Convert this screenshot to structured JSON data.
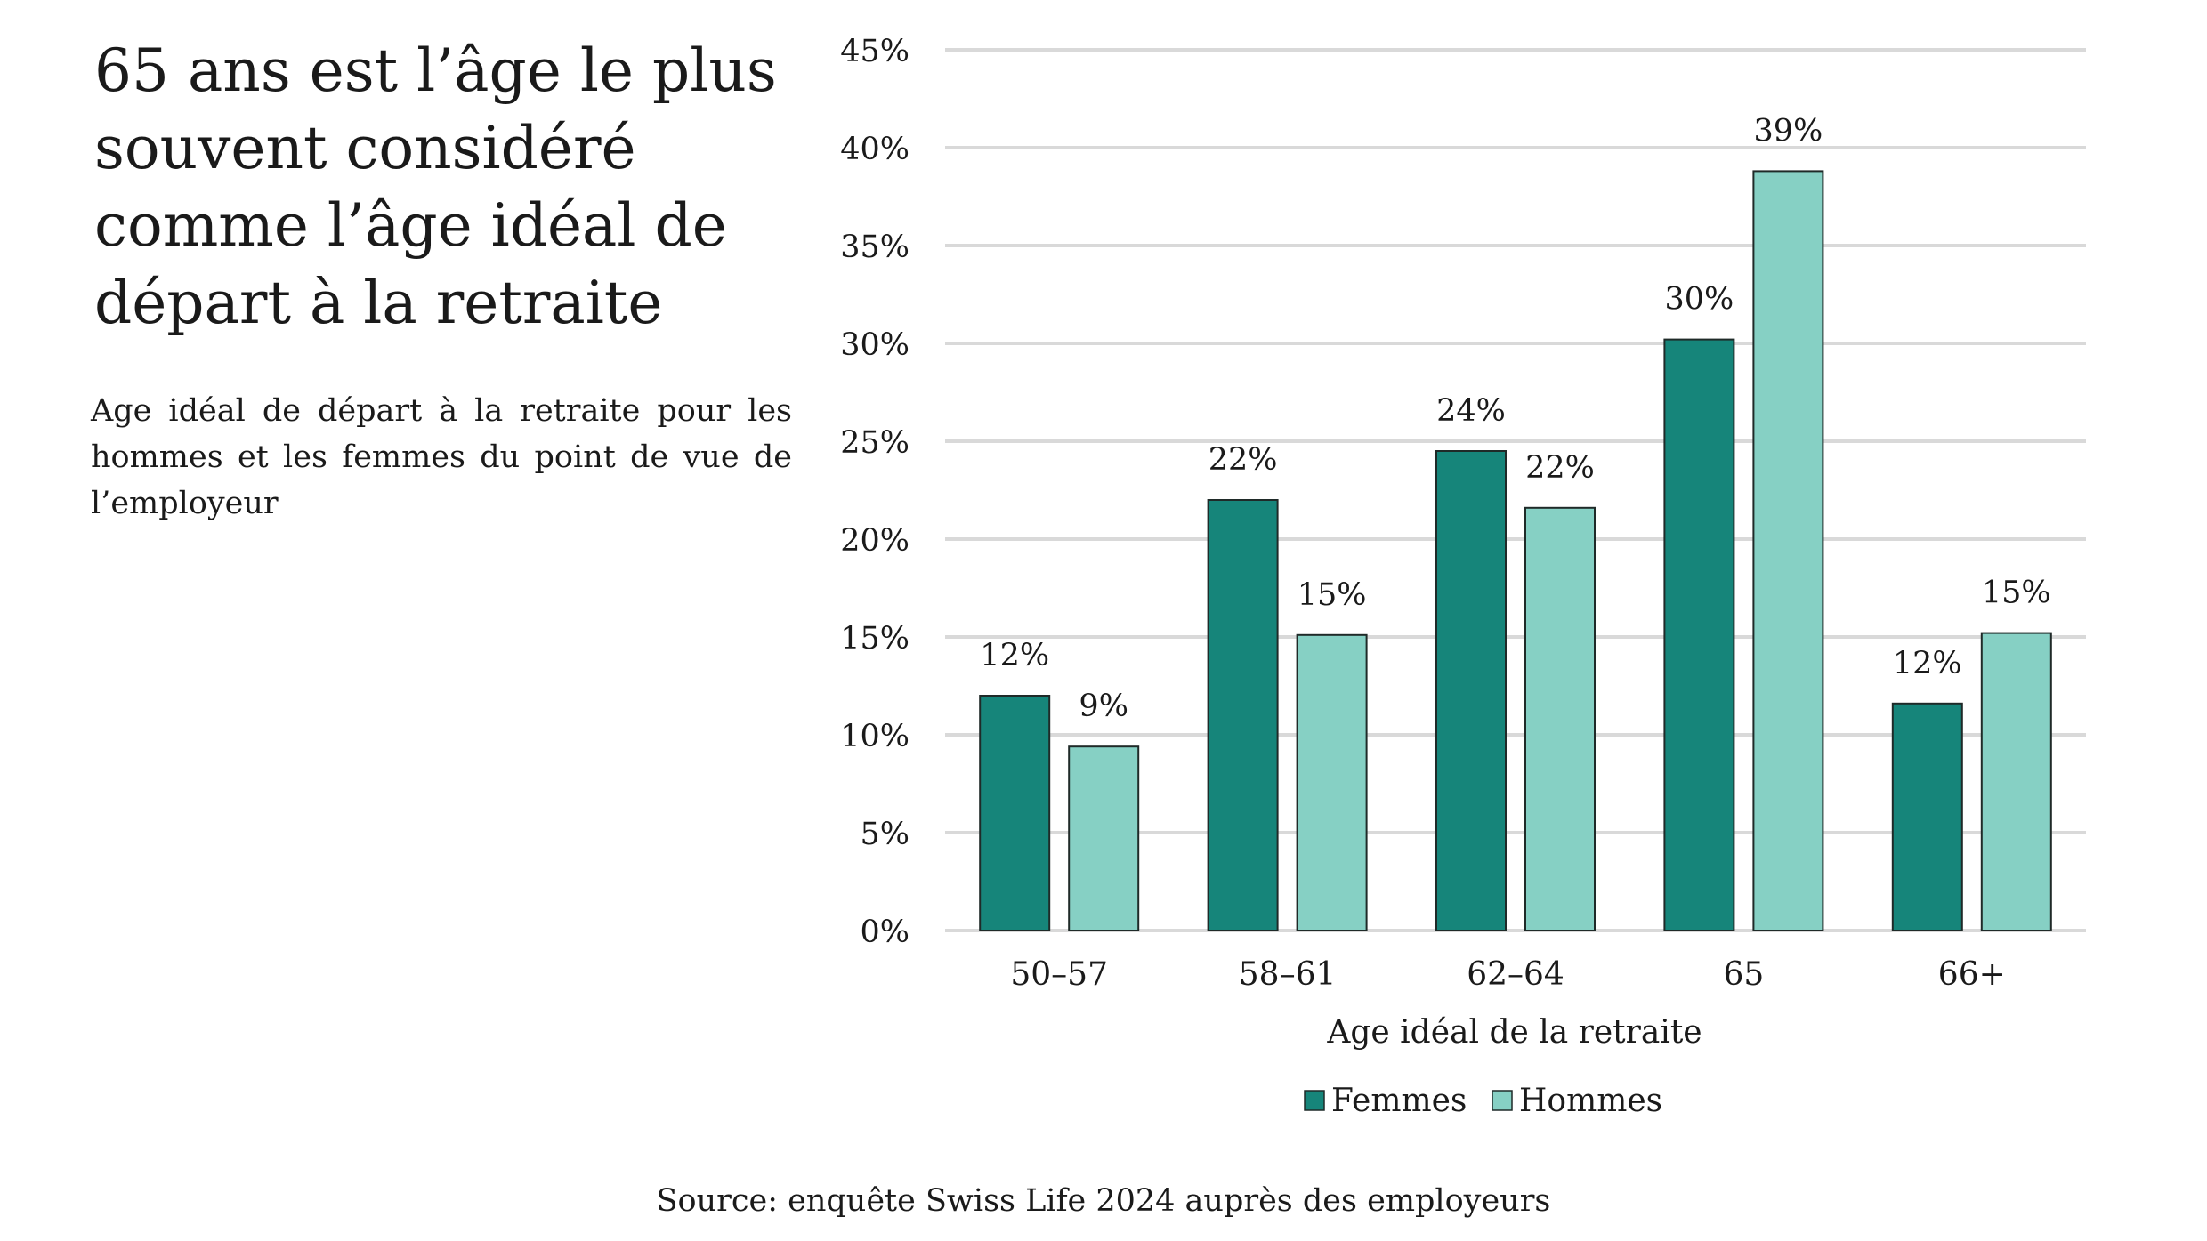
{
  "title": "65 ans est l’âge le plus souvent considéré comme l’âge idéal de départ à la retraite",
  "subtitle": "Age idéal de départ à la retraite pour les hommes et les femmes du point de vue de l’employeur",
  "source": "Source: enquête Swiss Life 2024 auprès des employeurs",
  "chart_data": {
    "type": "bar",
    "categories": [
      "50–57",
      "58–61",
      "62–64",
      "65",
      "66+"
    ],
    "series": [
      {
        "name": "Femmes",
        "color": "#16857a",
        "values": [
          12,
          22,
          24.5,
          30.2,
          11.6
        ],
        "labels": [
          "12%",
          "22%",
          "24%",
          "30%",
          "12%"
        ]
      },
      {
        "name": "Hommes",
        "color": "#86d0c4",
        "values": [
          9.4,
          15.1,
          21.6,
          38.8,
          15.2
        ],
        "labels": [
          "9%",
          "15%",
          "22%",
          "39%",
          "15%"
        ]
      }
    ],
    "xlabel": "Age idéal de la retraite",
    "ylabel": "",
    "ylim": [
      0,
      45
    ],
    "yticks": [
      0,
      5,
      10,
      15,
      20,
      25,
      30,
      35,
      40,
      45
    ],
    "ytick_labels": [
      "0%",
      "5%",
      "10%",
      "15%",
      "20%",
      "25%",
      "30%",
      "35%",
      "40%",
      "45%"
    ],
    "grid": true,
    "gridline_color": "#d9d9d9",
    "legend_position": "bottom"
  }
}
